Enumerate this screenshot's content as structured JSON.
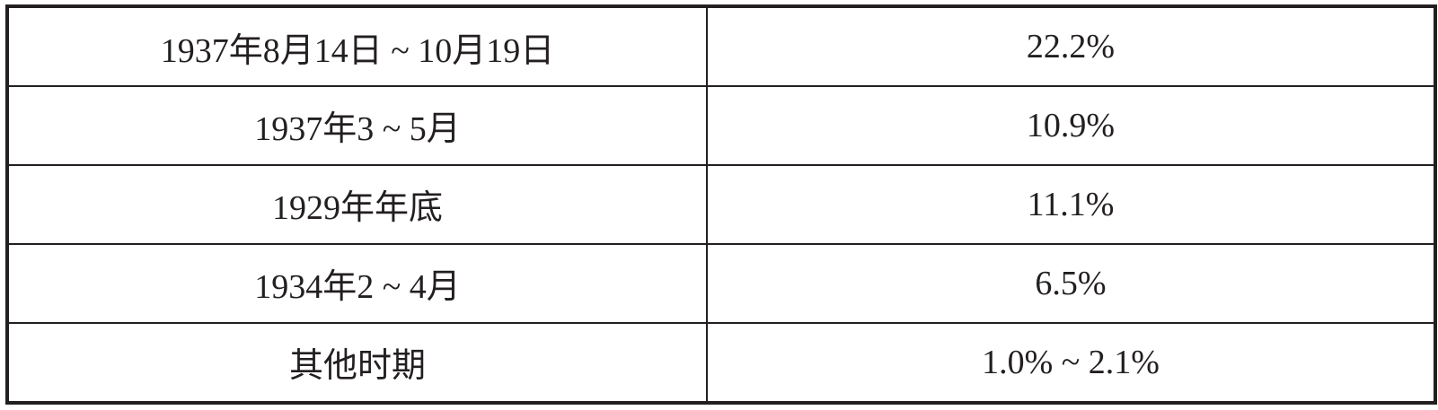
{
  "table": {
    "rows": [
      {
        "period": "1937年8月14日 ~ 10月19日",
        "value": "22.2%"
      },
      {
        "period": "1937年3 ~ 5月",
        "value": "10.9%"
      },
      {
        "period": "1929年年底",
        "value": "11.1%"
      },
      {
        "period": "1934年2 ~ 4月",
        "value": "6.5%"
      },
      {
        "period": "其他时期",
        "value": "1.0% ~ 2.1%"
      }
    ]
  }
}
